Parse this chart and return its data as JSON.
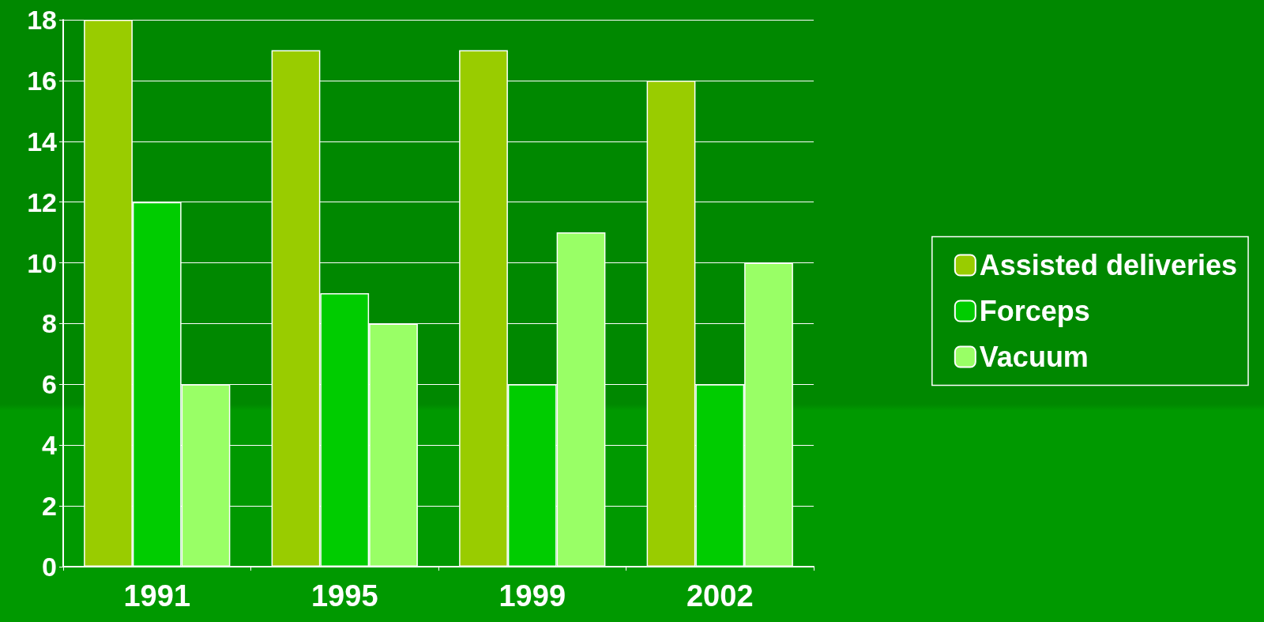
{
  "chart_data": {
    "type": "bar",
    "categories": [
      "1991",
      "1995",
      "1999",
      "2002"
    ],
    "series": [
      {
        "name": "Assisted deliveries",
        "color": "#99cc00",
        "values": [
          18,
          17,
          17,
          16
        ]
      },
      {
        "name": "Forceps",
        "color": "#00cc00",
        "values": [
          12,
          9,
          6,
          6
        ]
      },
      {
        "name": "Vacuum",
        "color": "#99ff66",
        "values": [
          6,
          8,
          11,
          10
        ]
      }
    ],
    "ylim": [
      0,
      18
    ],
    "yticks": [
      0,
      2,
      4,
      6,
      8,
      10,
      12,
      14,
      16,
      18
    ],
    "grid": "y",
    "legend": "right"
  }
}
